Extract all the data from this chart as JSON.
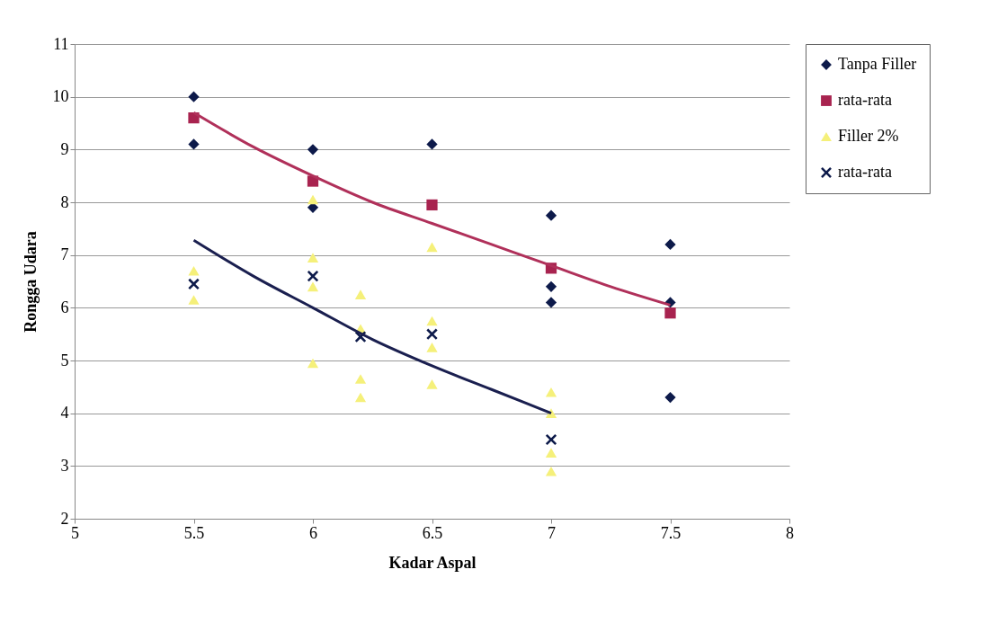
{
  "chart_data": {
    "type": "scatter",
    "xlabel": "Kadar Aspal",
    "ylabel": "Rongga Udara",
    "xlim": [
      5,
      8
    ],
    "xticks": [
      5,
      5.5,
      6,
      6.5,
      7,
      7.5,
      8
    ],
    "ylim": [
      2,
      11
    ],
    "yticks": [
      2,
      3,
      4,
      5,
      6,
      7,
      8,
      9,
      10,
      11
    ],
    "grid": "y",
    "legend": "right",
    "series": [
      {
        "name": "Tanpa Filler",
        "color": "#0d1a4a",
        "marker": "diamond",
        "x": [
          5.5,
          5.5,
          6,
          6,
          6.5,
          7,
          7,
          7,
          7.5,
          7.5,
          7.5
        ],
        "values": [
          10.0,
          9.1,
          9.0,
          7.9,
          9.1,
          7.75,
          6.4,
          6.1,
          7.2,
          6.1,
          4.3
        ]
      },
      {
        "name": "rata-rata",
        "color": "#a8234f",
        "marker": "square",
        "x": [
          5.5,
          6,
          6.5,
          7,
          7.5
        ],
        "values": [
          9.6,
          8.4,
          7.95,
          6.75,
          5.9
        ]
      },
      {
        "name": "Filler 2%",
        "color": "#f5f07a",
        "marker": "triangle",
        "x": [
          5.5,
          5.5,
          6,
          6,
          6,
          6,
          6.2,
          6.2,
          6.2,
          6.2,
          6.5,
          6.5,
          6.5,
          6.5,
          7,
          7,
          7,
          7
        ],
        "values": [
          6.7,
          6.15,
          8.05,
          6.95,
          6.4,
          4.95,
          6.25,
          5.6,
          4.65,
          4.3,
          7.15,
          5.75,
          5.25,
          4.55,
          4.4,
          4.0,
          3.25,
          2.9
        ]
      },
      {
        "name": "rata-rata",
        "color": "#0d1a4a",
        "marker": "cross",
        "x": [
          5.5,
          6,
          6.2,
          6.5,
          7
        ],
        "values": [
          6.45,
          6.6,
          5.45,
          5.5,
          3.5
        ]
      },
      {
        "type": "line",
        "color": "#b0305a",
        "marker": "none",
        "x": [
          5.5,
          5.75,
          6,
          6.25,
          6.5,
          6.75,
          7,
          7.25,
          7.5
        ],
        "values": [
          9.7,
          9.05,
          8.5,
          8.0,
          7.6,
          7.2,
          6.8,
          6.4,
          6.05
        ]
      },
      {
        "type": "line",
        "color": "#1a1f4f",
        "marker": "none",
        "x": [
          5.5,
          5.75,
          6,
          6.25,
          6.5,
          6.75,
          7
        ],
        "values": [
          7.28,
          6.6,
          6.0,
          5.4,
          4.9,
          4.45,
          4.0
        ]
      }
    ]
  }
}
